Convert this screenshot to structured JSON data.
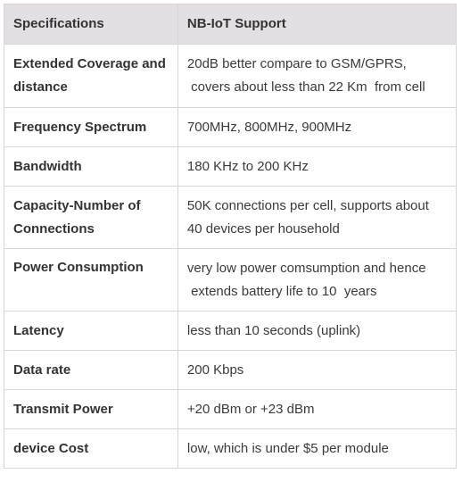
{
  "table": {
    "headers": [
      "Specifications",
      "NB-IoT Support"
    ],
    "rows": [
      {
        "spec": [
          "Extended Coverage and",
          "distance"
        ],
        "value": [
          "20dB better compare to GSM/GPRS,",
          " covers about less than 22 Km  from cell"
        ]
      },
      {
        "spec": [
          "Frequency Spectrum"
        ],
        "value": [
          "700MHz, 800MHz, 900MHz"
        ]
      },
      {
        "spec": [
          "Bandwidth"
        ],
        "value": [
          "180 KHz to 200 KHz"
        ]
      },
      {
        "spec": [
          "Capacity-Number of",
          "Connections"
        ],
        "value": [
          "50K connections per cell, supports about",
          "40 devices per household"
        ]
      },
      {
        "spec": [
          "Power Consumption"
        ],
        "value": [
          "very low power comsumption and hence",
          " extends battery life to 10  years"
        ]
      },
      {
        "spec": [
          "Latency"
        ],
        "value": [
          "less than 10 seconds (uplink)"
        ]
      },
      {
        "spec": [
          "Data rate"
        ],
        "value": [
          "200 Kbps"
        ]
      },
      {
        "spec": [
          "Transmit Power"
        ],
        "value": [
          "+20 dBm or +23 dBm"
        ]
      },
      {
        "spec": [
          "device Cost"
        ],
        "value": [
          "low, which is under $5 per module"
        ]
      }
    ]
  }
}
